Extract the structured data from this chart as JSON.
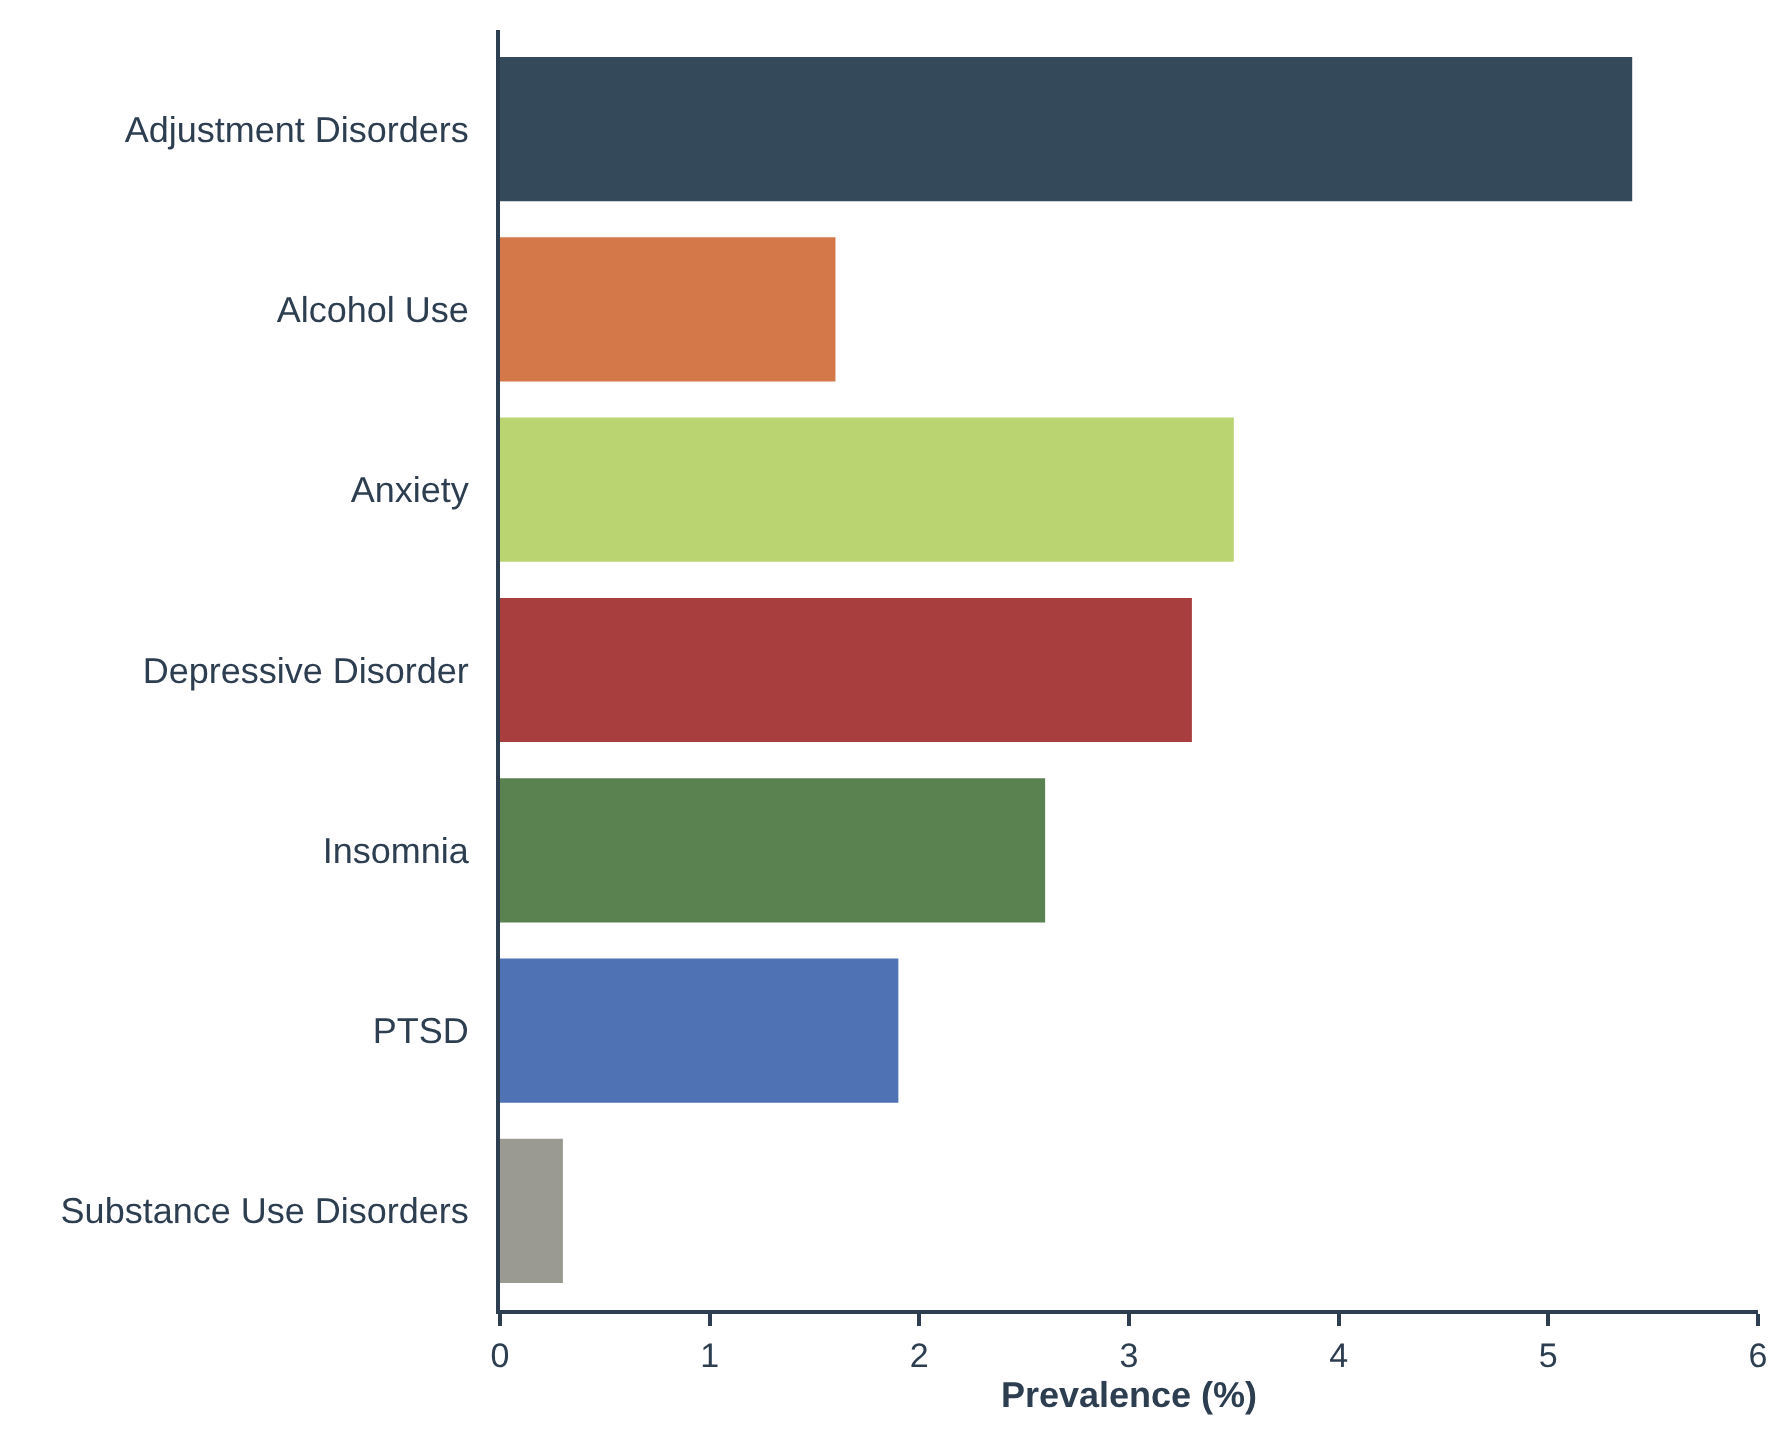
{
  "chart_data": {
    "type": "bar",
    "orientation": "horizontal",
    "xlabel": "Prevalence (%)",
    "categories": [
      "Adjustment Disorders",
      "Alcohol Use",
      "Anxiety",
      "Depressive Disorder",
      "Insomnia",
      "PTSD",
      "Substance Use Disorders"
    ],
    "values": [
      5.4,
      1.6,
      3.5,
      3.3,
      2.6,
      1.9,
      0.3
    ],
    "colors": [
      "#34495a",
      "#d4784a",
      "#bad472",
      "#a83e3e",
      "#5a8250",
      "#4f72b5",
      "#9b9a92"
    ],
    "xlim": [
      0,
      6
    ],
    "xticks": [
      0,
      1,
      2,
      3,
      4,
      5,
      6
    ]
  }
}
